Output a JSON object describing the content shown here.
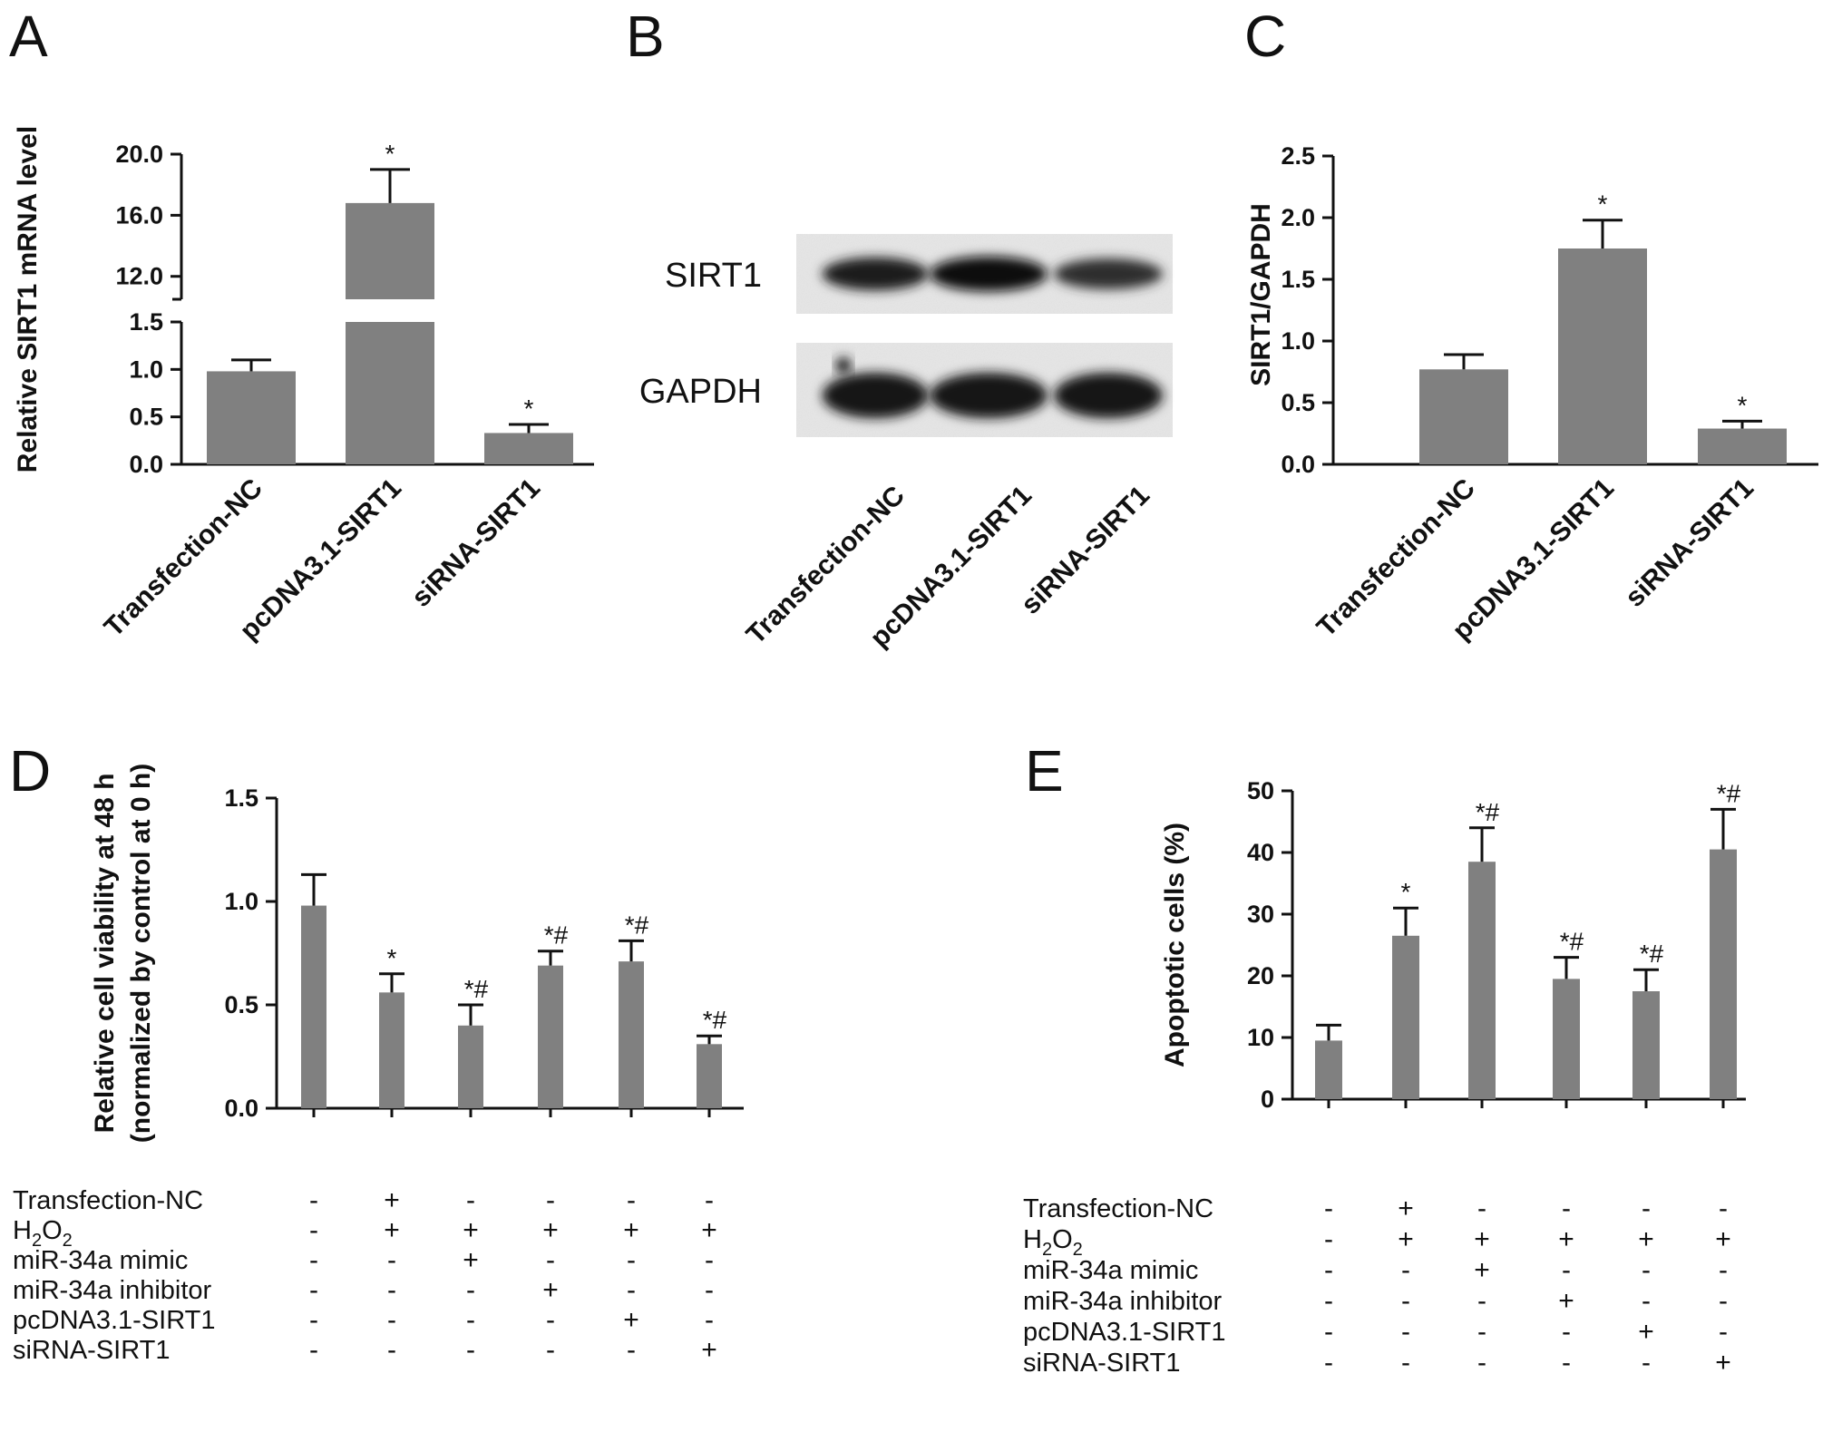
{
  "panels": {
    "A": "A",
    "B": "B",
    "C": "C",
    "D": "D",
    "E": "E"
  },
  "chart_data": [
    {
      "id": "A",
      "type": "bar",
      "ylabel": "Relative SIRT1 mRNA level",
      "categories": [
        "Transfection-NC",
        "pcDNA3.1-SIRT1",
        "siRNA-SIRT1"
      ],
      "values": [
        0.98,
        16.8,
        0.33
      ],
      "errors": [
        0.12,
        2.2,
        0.09
      ],
      "significance": [
        "",
        "*",
        "*"
      ],
      "axis_break": true,
      "lower_range": [
        0,
        1.5
      ],
      "upper_range": [
        10.5,
        20.0
      ],
      "lower_ticks": [
        "0.0",
        "0.5",
        "1.0",
        "1.5"
      ],
      "upper_ticks": [
        "12.0",
        "16.0",
        "20.0"
      ]
    },
    {
      "id": "B",
      "type": "blot",
      "bands": [
        "SIRT1",
        "GAPDH"
      ],
      "lanes": [
        "Transfection-NC",
        "pcDNA3.1-SIRT1",
        "siRNA-SIRT1"
      ],
      "intensity": {
        "SIRT1": [
          0.7,
          0.9,
          0.5
        ],
        "GAPDH": [
          0.85,
          0.85,
          0.85
        ]
      }
    },
    {
      "id": "C",
      "type": "bar",
      "ylabel": "SIRT1/GAPDH",
      "categories": [
        "Transfection-NC",
        "pcDNA3.1-SIRT1",
        "siRNA-SIRT1"
      ],
      "values": [
        0.77,
        1.75,
        0.29
      ],
      "errors": [
        0.12,
        0.23,
        0.06
      ],
      "significance": [
        "",
        "*",
        "*"
      ],
      "ylim": [
        0,
        2.5
      ],
      "ticks": [
        "0.0",
        "0.5",
        "1.0",
        "1.5",
        "2.0",
        "2.5"
      ]
    },
    {
      "id": "D",
      "type": "bar",
      "ylabel_lines": [
        "Relative cell viability at 48 h",
        "(normalized by control at 0 h)"
      ],
      "values": [
        0.98,
        0.56,
        0.4,
        0.69,
        0.71,
        0.31
      ],
      "errors": [
        0.15,
        0.09,
        0.1,
        0.07,
        0.1,
        0.04
      ],
      "significance": [
        "",
        "*",
        "*#",
        "*#",
        "*#",
        "*#"
      ],
      "ylim": [
        0,
        1.5
      ],
      "ticks": [
        "0.0",
        "0.5",
        "1.0",
        "1.5"
      ],
      "treatments": [
        {
          "label": "Transfection-NC",
          "signs": [
            "-",
            "+",
            "-",
            "-",
            "-",
            "-"
          ]
        },
        {
          "label_main": "H",
          "label_sub": "2",
          "label_main2": "O",
          "label_sub2": "2",
          "signs": [
            "-",
            "+",
            "+",
            "+",
            "+",
            "+"
          ]
        },
        {
          "label": "miR-34a mimic",
          "signs": [
            "-",
            "-",
            "+",
            "-",
            "-",
            "-"
          ]
        },
        {
          "label": "miR-34a inhibitor",
          "signs": [
            "-",
            "-",
            "-",
            "+",
            "-",
            "-"
          ]
        },
        {
          "label": "pcDNA3.1-SIRT1",
          "signs": [
            "-",
            "-",
            "-",
            "-",
            "+",
            "-"
          ]
        },
        {
          "label": "siRNA-SIRT1",
          "signs": [
            "-",
            "-",
            "-",
            "-",
            "-",
            "+"
          ]
        }
      ]
    },
    {
      "id": "E",
      "type": "bar",
      "ylabel": "Apoptotic cells (%)",
      "values": [
        9.5,
        26.5,
        38.5,
        19.5,
        17.5,
        40.5
      ],
      "errors": [
        2.5,
        4.5,
        5.5,
        3.5,
        3.5,
        6.5
      ],
      "significance": [
        "",
        "*",
        "*#",
        "*#",
        "*#",
        "*#"
      ],
      "ylim": [
        0,
        50
      ],
      "ticks": [
        "0",
        "10",
        "20",
        "30",
        "40",
        "50"
      ],
      "treatments": [
        {
          "label": "Transfection-NC",
          "signs": [
            "-",
            "+",
            "-",
            "-",
            "-",
            "-"
          ]
        },
        {
          "label_main": "H",
          "label_sub": "2",
          "label_main2": "O",
          "label_sub2": "2",
          "signs": [
            "-",
            "+",
            "+",
            "+",
            "+",
            "+"
          ]
        },
        {
          "label": "miR-34a mimic",
          "signs": [
            "-",
            "-",
            "+",
            "-",
            "-",
            "-"
          ]
        },
        {
          "label": "miR-34a inhibitor",
          "signs": [
            "-",
            "-",
            "-",
            "+",
            "-",
            "-"
          ]
        },
        {
          "label": "pcDNA3.1-SIRT1",
          "signs": [
            "-",
            "-",
            "-",
            "-",
            "+",
            "-"
          ]
        },
        {
          "label": "siRNA-SIRT1",
          "signs": [
            "-",
            "-",
            "-",
            "-",
            "-",
            "+"
          ]
        }
      ]
    }
  ]
}
